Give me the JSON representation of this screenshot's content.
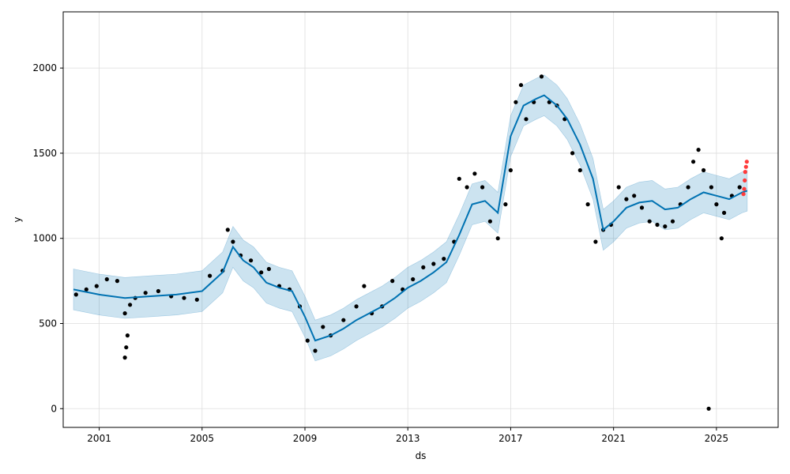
{
  "chart_data": {
    "type": "scatter",
    "title": "",
    "xlabel": "ds",
    "ylabel": "y",
    "xlim": [
      1999.6,
      2027.4
    ],
    "ylim": [
      -110,
      2330
    ],
    "x_ticks": [
      2001,
      2005,
      2009,
      2013,
      2017,
      2021,
      2025
    ],
    "x_tick_labels": [
      "2001",
      "2005",
      "2009",
      "2013",
      "2017",
      "2021",
      "2025"
    ],
    "y_ticks": [
      0,
      500,
      1000,
      1500,
      2000
    ],
    "y_tick_labels": [
      "0",
      "500",
      "1000",
      "1500",
      "2000"
    ],
    "grid": true,
    "legend": "none",
    "colors": {
      "observed": "#000000",
      "forecast": "#0072B2",
      "interval": "#0072B2",
      "recent": "#ff3b3b"
    },
    "series": [
      {
        "kind": "points",
        "x": [
          2000.1,
          2000.5,
          2000.9,
          2001.3,
          2001.7,
          2002.0,
          2002.2,
          2002.4,
          2002.8,
          2003.3,
          2003.8,
          2004.3,
          2004.8,
          2005.3,
          2005.8,
          2006.0,
          2006.2,
          2006.5,
          2006.9,
          2007.3,
          2007.6,
          2008.0,
          2008.4,
          2008.8,
          2009.1,
          2009.4,
          2009.7,
          2010.0,
          2010.5,
          2011.0,
          2011.3,
          2011.6,
          2012.0,
          2012.4,
          2012.8,
          2013.2,
          2013.6,
          2014.0,
          2014.4,
          2014.8,
          2015.0,
          2015.3,
          2015.6,
          2015.9,
          2016.2,
          2016.5,
          2016.8,
          2017.0,
          2017.2,
          2017.4,
          2017.6,
          2017.9,
          2018.2,
          2018.5,
          2018.8,
          2019.1,
          2019.4,
          2019.7,
          2020.0,
          2020.3,
          2020.6,
          2020.9,
          2021.2,
          2021.5,
          2021.8,
          2022.1,
          2022.4,
          2022.7,
          2023.0,
          2023.3,
          2023.6,
          2023.9,
          2024.1,
          2024.3,
          2024.5,
          2024.8,
          2025.0,
          2025.3,
          2025.6,
          2025.9
        ],
        "y": [
          670,
          700,
          720,
          760,
          750,
          560,
          610,
          650,
          680,
          690,
          660,
          650,
          640,
          780,
          810,
          1050,
          980,
          900,
          870,
          800,
          820,
          720,
          700,
          600,
          400,
          340,
          480,
          430,
          520,
          600,
          720,
          560,
          600,
          750,
          700,
          760,
          830,
          850,
          880,
          980,
          1350,
          1300,
          1380,
          1300,
          1100,
          1000,
          1200,
          1400,
          1800,
          1900,
          1700,
          1800,
          1950,
          1800,
          1780,
          1700,
          1500,
          1400,
          1200,
          980,
          1050,
          1080,
          1300,
          1230,
          1250,
          1180,
          1100,
          1080,
          1070,
          1100,
          1200,
          1300,
          1450,
          1520,
          1400,
          1300,
          1200,
          1150,
          1250,
          1300
        ]
      },
      {
        "kind": "outliers",
        "x": [
          2002.0,
          2002.05,
          2002.1,
          2025.2,
          2024.7
        ],
        "y": [
          300,
          360,
          430,
          1000,
          0
        ]
      },
      {
        "kind": "recent",
        "x": [
          2026.05,
          2026.08,
          2026.1,
          2026.12,
          2026.15,
          2026.18
        ],
        "y": [
          1260,
          1290,
          1340,
          1390,
          1420,
          1450
        ]
      },
      {
        "kind": "trend",
        "x": [
          2000.0,
          2001.0,
          2002.0,
          2003.0,
          2004.0,
          2005.0,
          2005.8,
          2006.2,
          2006.6,
          2007.0,
          2007.5,
          2008.0,
          2008.5,
          2009.0,
          2009.4,
          2010.0,
          2010.5,
          2011.0,
          2011.5,
          2012.0,
          2012.5,
          2013.0,
          2013.5,
          2014.0,
          2014.5,
          2015.0,
          2015.5,
          2016.0,
          2016.5,
          2017.0,
          2017.5,
          2018.0,
          2018.3,
          2018.8,
          2019.2,
          2019.7,
          2020.2,
          2020.6,
          2021.0,
          2021.5,
          2022.0,
          2022.5,
          2023.0,
          2023.5,
          2024.0,
          2024.5,
          2025.0,
          2025.5,
          2026.0,
          2026.2
        ],
        "y": [
          700,
          670,
          650,
          660,
          670,
          690,
          800,
          950,
          870,
          830,
          740,
          710,
          690,
          540,
          400,
          430,
          470,
          520,
          560,
          600,
          650,
          710,
          750,
          800,
          860,
          1020,
          1200,
          1220,
          1150,
          1600,
          1780,
          1820,
          1840,
          1780,
          1700,
          1550,
          1350,
          1050,
          1100,
          1180,
          1210,
          1220,
          1170,
          1180,
          1230,
          1270,
          1250,
          1230,
          1270,
          1280
        ]
      }
    ],
    "interval_half_width": 120
  }
}
